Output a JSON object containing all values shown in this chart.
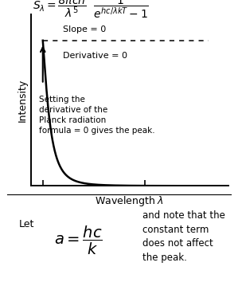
{
  "background_color": "#ffffff",
  "ylabel": "Intensity",
  "xlabel": "Wavelength $\\lambda$",
  "slope_text": "Slope = 0",
  "derivative_text": "Derivative = 0",
  "annotation_text": "Setting the\nderivative of the\nPlanck radiation\nformula = 0 gives the peak.",
  "let_text": "Let",
  "let_formula": "$a = \\dfrac{hc}{k}$",
  "let_note": "and note that the\nconstant term\ndoes not affect\nthe peak.",
  "curve_color": "#000000",
  "dashed_color": "#000000",
  "text_color": "#000000",
  "xmin": 0.0,
  "xmax": 1.0,
  "ymin": 0.0,
  "ymax": 1.18,
  "planck_a": 0.23
}
